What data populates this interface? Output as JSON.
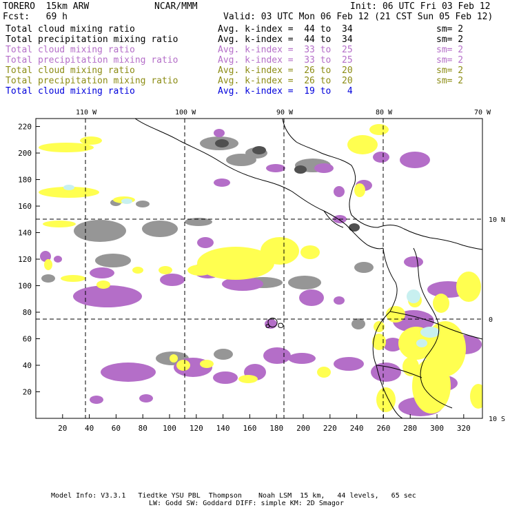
{
  "header": {
    "model": "TORERO  15km ARW",
    "org": "NCAR/MMM",
    "init": "Init: 06 UTC Fri 03 Feb 12",
    "fcst": "Fcst:   69 h",
    "valid": "Valid: 03 UTC Mon 06 Feb 12 (21 CST Sun 05 Feb 12)"
  },
  "legend": [
    {
      "field": "Total cloud mixing ratio",
      "kindex": "Avg. k-index =  44 to  34",
      "sm": "sm= 2",
      "color": "#000000"
    },
    {
      "field": "Total precipitation mixing ratio",
      "kindex": "Avg. k-index =  44 to  34",
      "sm": "sm= 2",
      "color": "#000000"
    },
    {
      "field": "Total cloud mixing ratio",
      "kindex": "Avg. k-index =  33 to  25",
      "sm": "sm= 2",
      "color": "#b46ec8"
    },
    {
      "field": "Total precipitation mixing ratio",
      "kindex": "Avg. k-index =  33 to  25",
      "sm": "sm= 2",
      "color": "#b46ec8"
    },
    {
      "field": "Total cloud mixing ratio",
      "kindex": "Avg. k-index =  26 to  20",
      "sm": "sm= 2",
      "color": "#8c8c14"
    },
    {
      "field": "Total precipitation mixing ratio",
      "kindex": "Avg. k-index =  26 to  20",
      "sm": "sm= 2",
      "color": "#8c8c14"
    },
    {
      "field": "Total cloud mixing ratio",
      "kindex": "Avg. k-index =  19 to   4",
      "sm": "",
      "color": "#0000dc"
    }
  ],
  "map": {
    "lon_labels": [
      "110 W",
      "100 W",
      "90 W",
      "80 W",
      "70 W"
    ],
    "lat_labels": [
      "10 N",
      "0",
      "10 S"
    ],
    "x_ticks": [
      20,
      40,
      60,
      80,
      100,
      120,
      140,
      160,
      180,
      200,
      220,
      240,
      260,
      280,
      300,
      320
    ],
    "y_ticks": [
      20,
      40,
      60,
      80,
      100,
      120,
      140,
      160,
      180,
      200,
      220
    ],
    "x_range": [
      0,
      334
    ],
    "y_range": [
      0,
      226
    ],
    "colors": {
      "gray": "#969696",
      "darkgray": "#505050",
      "purple": "#b46ec8",
      "yellow": "#ffff50",
      "cyan": "#c8f0f0"
    }
  },
  "footer": {
    "line1": "Model Info: V3.3.1   Tiedtke YSU PBL  Thompson    Noah LSM  15 km,   44 levels,   65 sec",
    "line2": "LW: Godd SW: Goddard DIFF: simple KM: 2D Smagor"
  }
}
